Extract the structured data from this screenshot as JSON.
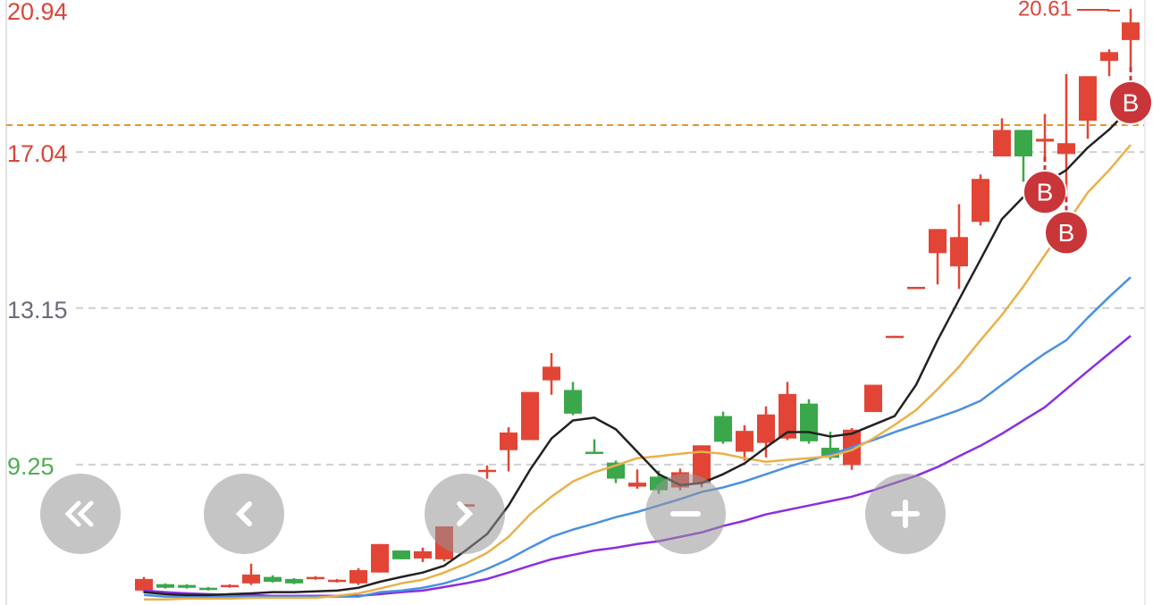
{
  "chart_data": {
    "type": "candlestick",
    "ylim": [
      5.35,
      20.94
    ],
    "yticks": [
      9.25,
      13.15,
      17.04,
      20.94
    ],
    "ytick_colors": [
      "#4caf50",
      "#6a6a78",
      "#d9453a",
      "#d9453a"
    ],
    "grid": true,
    "up_color": "#e24535",
    "down_color": "#3aa84a",
    "ref_line": 17.71,
    "ref_line_color": "#e8962a",
    "open": [
      6.11,
      6.27,
      6.25,
      6.18,
      6.2,
      6.29,
      6.45,
      6.4,
      6.4,
      6.33,
      6.29,
      6.56,
      7.11,
      6.91,
      6.89,
      8.21,
      9.08,
      9.61,
      9.86,
      11.35,
      11.11,
      9.57,
      9.3,
      8.7,
      8.95,
      8.68,
      8.79,
      10.46,
      9.57,
      9.79,
      9.9,
      10.77,
      9.67,
      9.24,
      10.56,
      12.41,
      13.63,
      14.52,
      14.19,
      15.3,
      16.93,
      17.59,
      17.3,
      16.99,
      17.82,
      19.31,
      19.83
    ],
    "high": [
      6.45,
      6.29,
      6.27,
      6.2,
      6.27,
      6.78,
      6.49,
      6.42,
      6.47,
      6.4,
      6.67,
      7.27,
      7.11,
      7.18,
      7.71,
      8.26,
      9.23,
      10.18,
      11.06,
      12.03,
      11.31,
      9.88,
      9.35,
      9.13,
      9.1,
      9.15,
      9.73,
      10.57,
      10.23,
      10.7,
      11.31,
      10.88,
      10.07,
      10.16,
      11.24,
      12.46,
      13.68,
      15.12,
      15.74,
      16.48,
      17.88,
      17.59,
      17.99,
      18.98,
      18.93,
      19.6,
      20.61
    ],
    "low": [
      6.05,
      6.16,
      6.16,
      6.11,
      6.18,
      6.25,
      6.31,
      6.27,
      6.38,
      6.31,
      6.25,
      6.56,
      6.89,
      6.82,
      6.84,
      8.21,
      8.9,
      9.08,
      9.86,
      10.99,
      10.48,
      9.52,
      8.79,
      8.65,
      8.52,
      8.61,
      8.68,
      9.77,
      9.35,
      9.43,
      9.86,
      9.77,
      9.37,
      9.12,
      10.56,
      12.41,
      13.63,
      13.74,
      13.63,
      15.21,
      16.93,
      16.3,
      16.93,
      15.92,
      17.37,
      18.93,
      19.16
    ],
    "close": [
      6.4,
      6.18,
      6.18,
      6.13,
      6.25,
      6.51,
      6.33,
      6.29,
      6.45,
      6.38,
      6.62,
      7.27,
      6.89,
      7.09,
      7.71,
      8.26,
      9.12,
      10.05,
      11.06,
      11.69,
      10.52,
      9.52,
      8.9,
      8.8,
      8.61,
      9.06,
      9.73,
      9.82,
      10.09,
      10.5,
      11.01,
      9.83,
      9.42,
      10.12,
      11.24,
      12.46,
      13.68,
      15.12,
      14.92,
      16.37,
      17.59,
      16.93,
      17.37,
      17.26,
      18.93,
      19.53,
      20.27
    ],
    "signals": [
      null,
      null,
      null,
      null,
      null,
      null,
      null,
      null,
      null,
      null,
      null,
      null,
      null,
      null,
      null,
      null,
      null,
      null,
      null,
      null,
      null,
      null,
      null,
      null,
      null,
      null,
      null,
      null,
      null,
      null,
      null,
      null,
      null,
      null,
      null,
      null,
      null,
      null,
      null,
      null,
      null,
      null,
      "B",
      "B",
      null,
      null,
      "B"
    ],
    "lines": [
      {
        "color": "#8a2ee0",
        "values": [
          6.11,
          6.07,
          6.04,
          6.02,
          6.0,
          6.0,
          5.98,
          5.98,
          5.98,
          5.98,
          5.98,
          6.02,
          6.07,
          6.11,
          6.2,
          6.29,
          6.4,
          6.56,
          6.73,
          6.89,
          7.0,
          7.11,
          7.18,
          7.27,
          7.34,
          7.45,
          7.56,
          7.72,
          7.85,
          8.01,
          8.12,
          8.23,
          8.34,
          8.45,
          8.61,
          8.79,
          8.97,
          9.19,
          9.46,
          9.72,
          10.02,
          10.35,
          10.68,
          11.13,
          11.58,
          12.02,
          12.46
        ]
      },
      {
        "color": "#4a90e2",
        "values": [
          6.0,
          5.96,
          5.96,
          5.96,
          5.96,
          5.96,
          5.96,
          5.96,
          5.96,
          5.96,
          5.96,
          6.07,
          6.11,
          6.18,
          6.29,
          6.45,
          6.65,
          6.89,
          7.18,
          7.45,
          7.63,
          7.78,
          7.94,
          8.07,
          8.23,
          8.39,
          8.57,
          8.68,
          8.83,
          9.01,
          9.19,
          9.35,
          9.5,
          9.68,
          9.86,
          10.06,
          10.24,
          10.42,
          10.61,
          10.84,
          11.24,
          11.64,
          12.02,
          12.35,
          12.91,
          13.43,
          13.92
        ]
      },
      {
        "color": "#eab04a",
        "values": [
          5.89,
          5.89,
          5.91,
          5.91,
          5.91,
          5.93,
          5.93,
          5.93,
          5.93,
          5.98,
          6.04,
          6.16,
          6.29,
          6.38,
          6.56,
          6.78,
          7.05,
          7.45,
          8.01,
          8.45,
          8.83,
          9.06,
          9.23,
          9.41,
          9.46,
          9.52,
          9.57,
          9.52,
          9.41,
          9.32,
          9.37,
          9.41,
          9.46,
          9.61,
          9.9,
          10.24,
          10.61,
          11.13,
          11.69,
          12.35,
          12.98,
          13.69,
          14.47,
          15.25,
          16.03,
          16.59,
          17.22
        ]
      },
      {
        "color": "#222222",
        "values": [
          6.07,
          6.02,
          6.0,
          6.0,
          6.02,
          6.04,
          6.07,
          6.07,
          6.09,
          6.11,
          6.18,
          6.33,
          6.45,
          6.56,
          6.73,
          7.11,
          7.52,
          8.23,
          9.12,
          9.9,
          10.35,
          10.42,
          10.13,
          9.57,
          9.01,
          8.74,
          8.79,
          9.01,
          9.28,
          9.68,
          10.06,
          10.06,
          9.95,
          10.02,
          10.24,
          10.46,
          11.24,
          12.35,
          13.36,
          14.36,
          15.37,
          15.92,
          16.26,
          16.59,
          17.15,
          17.6,
          18.15
        ]
      }
    ]
  }
}
